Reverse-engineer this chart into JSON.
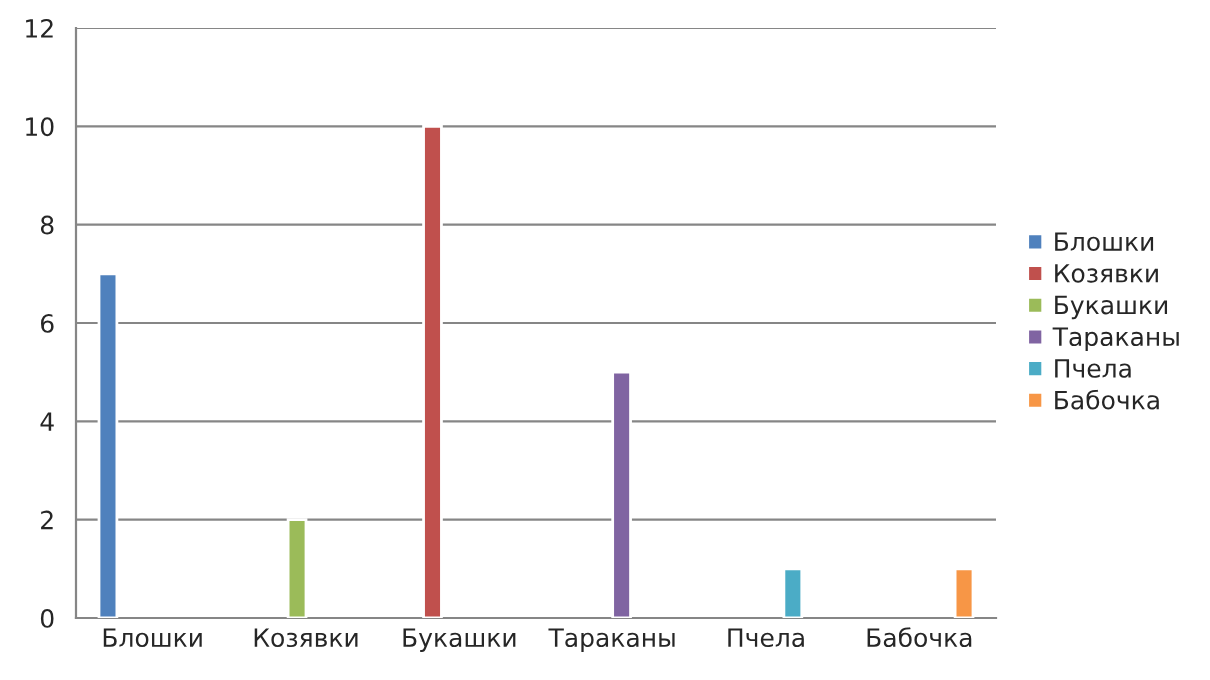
{
  "chart_data": {
    "type": "bar",
    "categories": [
      "Блошки",
      "Козявки",
      "Букашки",
      "Тараканы",
      "Пчела",
      "Бабочка"
    ],
    "series": [
      {
        "name": "Блошки",
        "color": "#4f81bd",
        "values": [
          7,
          null,
          null,
          null,
          null,
          null
        ]
      },
      {
        "name": "Козявки",
        "color": "#c0504d",
        "values": [
          null,
          null,
          10,
          null,
          null,
          null
        ]
      },
      {
        "name": "Букашки",
        "color": "#9bbb59",
        "values": [
          null,
          2,
          null,
          null,
          null,
          null
        ]
      },
      {
        "name": "Тараканы",
        "color": "#8064a2",
        "values": [
          null,
          null,
          null,
          5,
          null,
          null
        ]
      },
      {
        "name": "Пчела",
        "color": "#4bacc6",
        "values": [
          null,
          null,
          null,
          null,
          1,
          null
        ]
      },
      {
        "name": "Бабочка",
        "color": "#f79646",
        "values": [
          null,
          null,
          null,
          null,
          null,
          1
        ]
      }
    ],
    "ylim": [
      0,
      12
    ],
    "yticks": [
      0,
      2,
      4,
      6,
      8,
      10,
      12
    ],
    "grid": "y",
    "legend": "right"
  }
}
